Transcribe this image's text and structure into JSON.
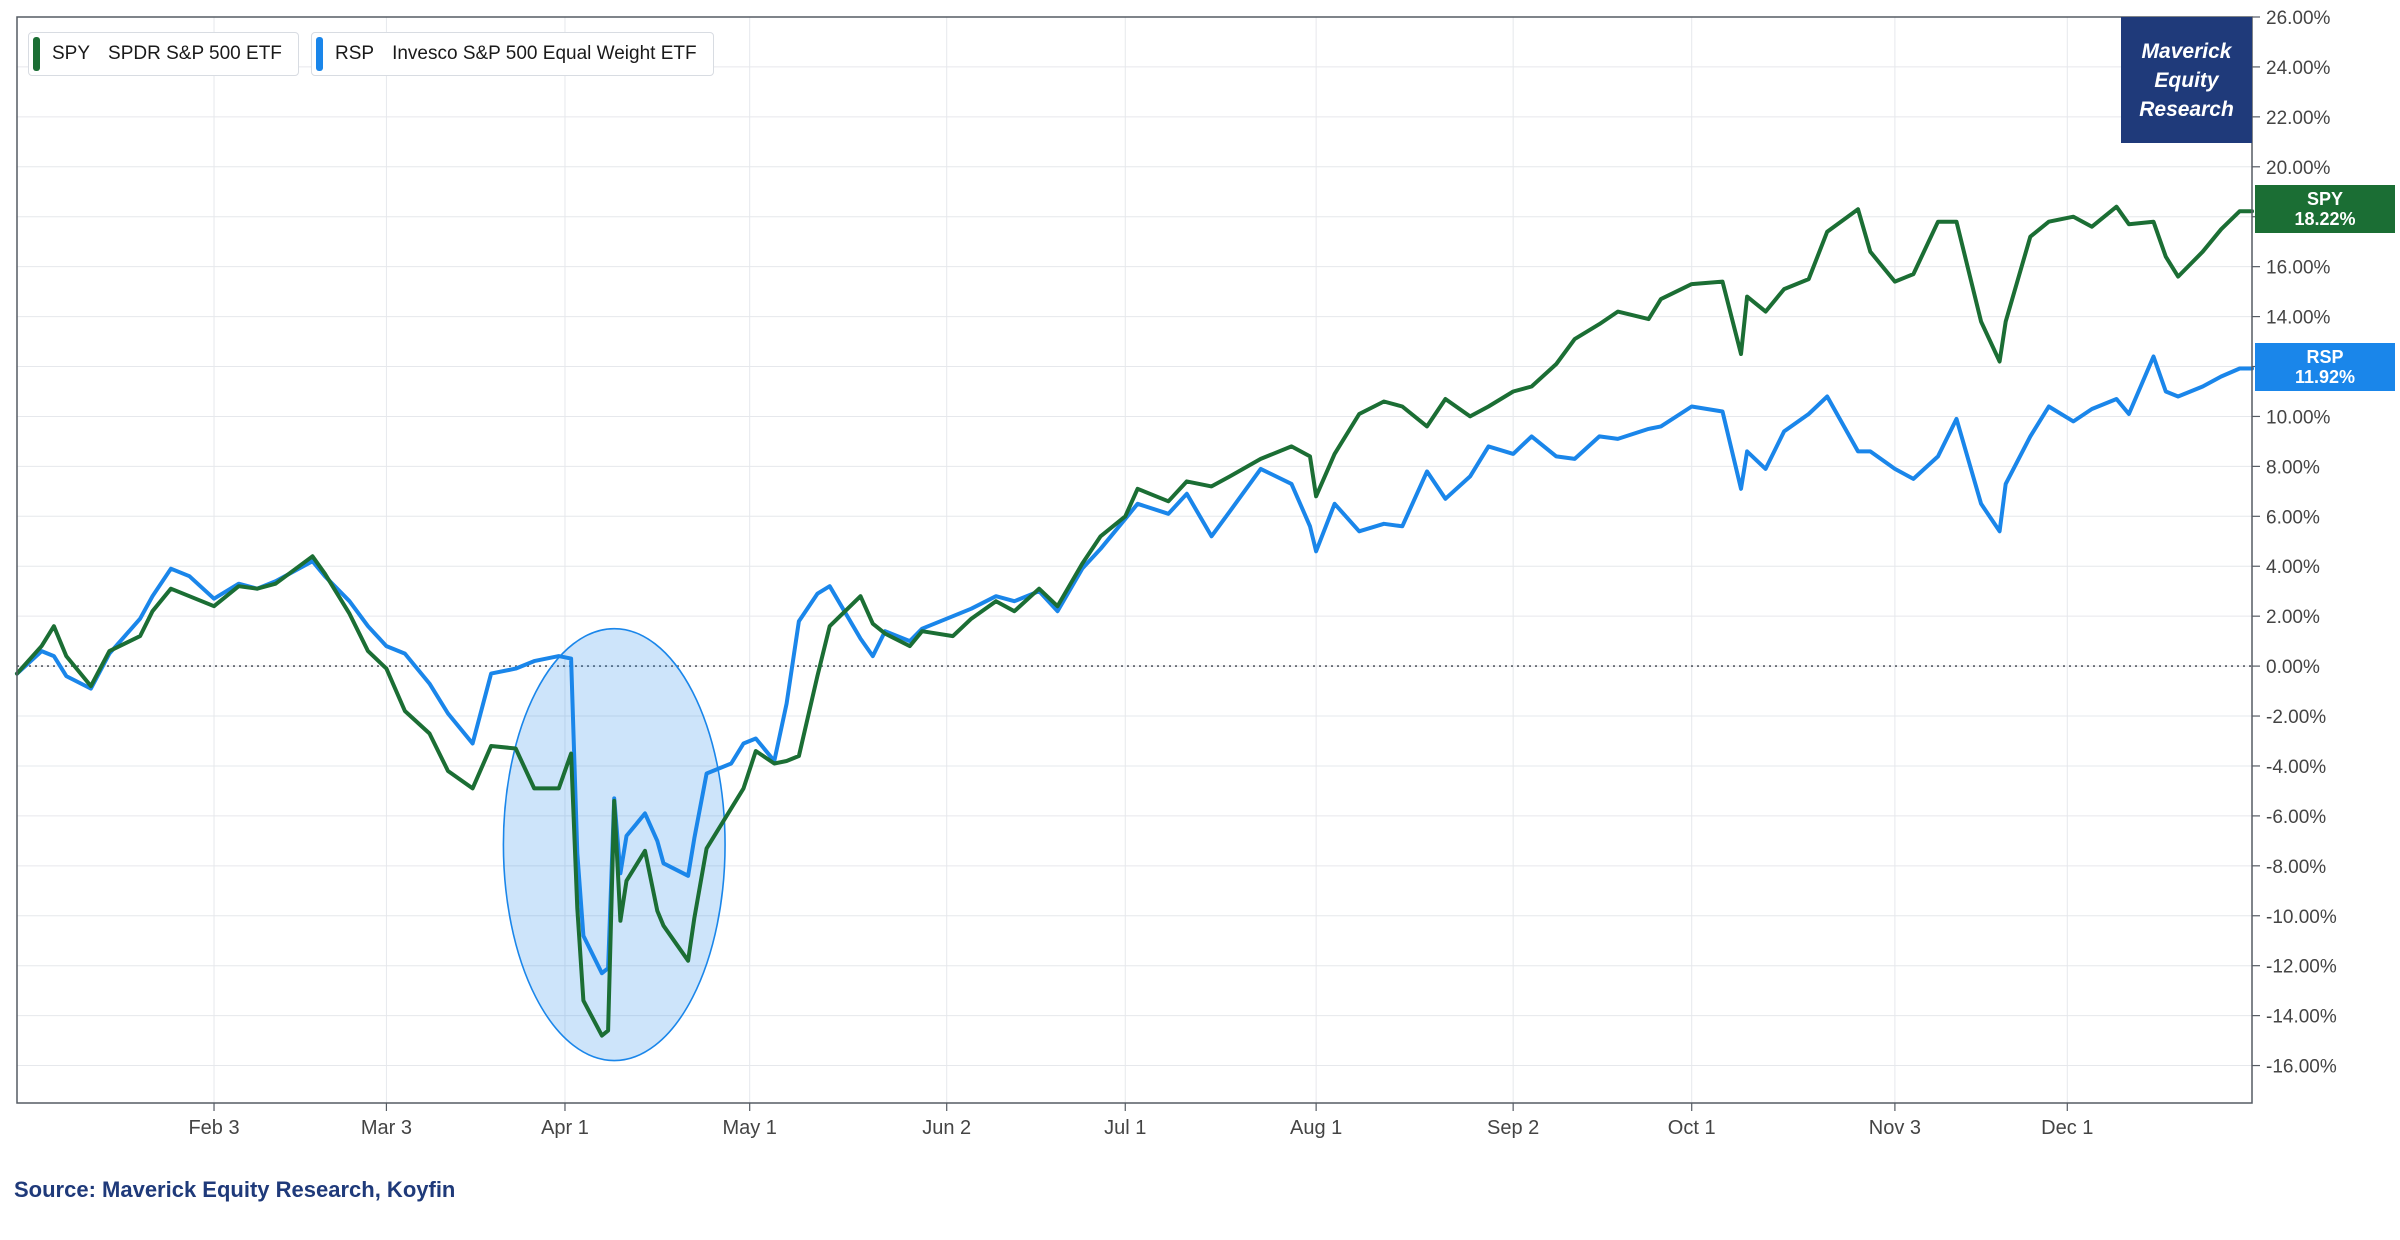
{
  "legend": [
    {
      "ticker": "SPY",
      "name": "SPDR S&P 500 ETF",
      "color": "#1b6e34"
    },
    {
      "ticker": "RSP",
      "name": "Invesco S&P 500 Equal Weight ETF",
      "color": "#1a86ea"
    }
  ],
  "brand": {
    "lines": [
      "Maverick",
      "Equity",
      "Research"
    ],
    "color": "#1f3a7a"
  },
  "source": "Source: Maverick Equity Research, Koyfin",
  "end_tags": {
    "spy": {
      "ticker": "SPY",
      "value": "18.22%",
      "color": "#1b6e34"
    },
    "rsp": {
      "ticker": "RSP",
      "value": "11.92%",
      "color": "#1a86ea"
    }
  },
  "chart_data": {
    "type": "line",
    "ylim": [
      -17.5,
      26
    ],
    "yticks": [
      "26.00%",
      "24.00%",
      "22.00%",
      "20.00%",
      "18.00%",
      "16.00%",
      "14.00%",
      "12.00%",
      "10.00%",
      "8.00%",
      "6.00%",
      "4.00%",
      "2.00%",
      "0.00%",
      "-2.00%",
      "-4.00%",
      "-6.00%",
      "-8.00%",
      "-10.00%",
      "-12.00%",
      "-14.00%",
      "-16.00%"
    ],
    "ytick_values": [
      26,
      24,
      22,
      20,
      18,
      16,
      14,
      12,
      10,
      8,
      6,
      4,
      2,
      0,
      -2,
      -4,
      -6,
      -8,
      -10,
      -12,
      -14,
      -16
    ],
    "xticks": [
      "Feb 3",
      "Mar 3",
      "Apr 1",
      "May 1",
      "Jun 2",
      "Jul 1",
      "Aug 1",
      "Sep 2",
      "Oct 1",
      "Nov 3",
      "Dec 1"
    ],
    "xtick_dates": [
      "2025-02-03",
      "2025-03-03",
      "2025-04-01",
      "2025-05-01",
      "2025-06-02",
      "2025-07-01",
      "2025-08-01",
      "2025-09-02",
      "2025-10-01",
      "2025-11-03",
      "2025-12-01"
    ],
    "xlim": [
      "2025-01-02",
      "2025-12-31"
    ],
    "zero_line": "dotted",
    "grid": true,
    "legend_position": "top-left",
    "highlight": {
      "shape": "ellipse",
      "x_range": [
        "2025-03-22",
        "2025-04-27"
      ],
      "y_range": [
        -15.8,
        1.5
      ],
      "color": "#1a86ea"
    },
    "series": [
      {
        "name": "SPY",
        "color": "#1b6e34",
        "x": [
          "2025-01-02",
          "2025-01-06",
          "2025-01-08",
          "2025-01-10",
          "2025-01-14",
          "2025-01-17",
          "2025-01-22",
          "2025-01-24",
          "2025-01-27",
          "2025-01-30",
          "2025-02-03",
          "2025-02-07",
          "2025-02-10",
          "2025-02-13",
          "2025-02-19",
          "2025-02-21",
          "2025-02-25",
          "2025-02-28",
          "2025-03-03",
          "2025-03-06",
          "2025-03-10",
          "2025-03-13",
          "2025-03-17",
          "2025-03-20",
          "2025-03-24",
          "2025-03-27",
          "2025-03-31",
          "2025-04-02",
          "2025-04-03",
          "2025-04-04",
          "2025-04-07",
          "2025-04-08",
          "2025-04-09",
          "2025-04-10",
          "2025-04-11",
          "2025-04-14",
          "2025-04-16",
          "2025-04-17",
          "2025-04-21",
          "2025-04-22",
          "2025-04-24",
          "2025-04-28",
          "2025-04-30",
          "2025-05-02",
          "2025-05-05",
          "2025-05-07",
          "2025-05-09",
          "2025-05-12",
          "2025-05-14",
          "2025-05-19",
          "2025-05-21",
          "2025-05-23",
          "2025-05-27",
          "2025-05-29",
          "2025-06-03",
          "2025-06-06",
          "2025-06-10",
          "2025-06-13",
          "2025-06-17",
          "2025-06-20",
          "2025-06-24",
          "2025-06-27",
          "2025-07-01",
          "2025-07-03",
          "2025-07-08",
          "2025-07-11",
          "2025-07-15",
          "2025-07-18",
          "2025-07-23",
          "2025-07-28",
          "2025-07-31",
          "2025-08-01",
          "2025-08-04",
          "2025-08-08",
          "2025-08-12",
          "2025-08-15",
          "2025-08-19",
          "2025-08-22",
          "2025-08-26",
          "2025-08-29",
          "2025-09-02",
          "2025-09-05",
          "2025-09-09",
          "2025-09-12",
          "2025-09-16",
          "2025-09-19",
          "2025-09-24",
          "2025-09-26",
          "2025-10-01",
          "2025-10-06",
          "2025-10-09",
          "2025-10-10",
          "2025-10-13",
          "2025-10-16",
          "2025-10-20",
          "2025-10-23",
          "2025-10-28",
          "2025-10-30",
          "2025-11-03",
          "2025-11-06",
          "2025-11-10",
          "2025-11-13",
          "2025-11-17",
          "2025-11-20",
          "2025-11-21",
          "2025-11-25",
          "2025-11-28",
          "2025-12-02",
          "2025-12-05",
          "2025-12-09",
          "2025-12-11",
          "2025-12-15",
          "2025-12-17",
          "2025-12-19",
          "2025-12-23",
          "2025-12-26",
          "2025-12-29",
          "2025-12-31"
        ],
        "values": [
          -0.3,
          0.8,
          1.6,
          0.4,
          -0.8,
          0.6,
          1.2,
          2.2,
          3.1,
          2.8,
          2.4,
          3.2,
          3.1,
          3.3,
          4.4,
          3.7,
          2.1,
          0.6,
          -0.1,
          -1.8,
          -2.7,
          -4.2,
          -4.9,
          -3.2,
          -3.3,
          -4.9,
          -4.9,
          -3.5,
          -9.7,
          -13.4,
          -14.8,
          -14.6,
          -5.4,
          -10.2,
          -8.6,
          -7.4,
          -9.8,
          -10.4,
          -11.8,
          -10.1,
          -7.3,
          -5.7,
          -4.9,
          -3.4,
          -3.9,
          -3.8,
          -3.6,
          -0.4,
          1.6,
          2.8,
          1.7,
          1.3,
          0.8,
          1.4,
          1.2,
          1.9,
          2.6,
          2.2,
          3.1,
          2.4,
          4.1,
          5.2,
          6.0,
          7.1,
          6.6,
          7.4,
          7.2,
          7.6,
          8.3,
          8.8,
          8.4,
          6.8,
          8.5,
          10.1,
          10.6,
          10.4,
          9.6,
          10.7,
          10.0,
          10.4,
          11.0,
          11.2,
          12.1,
          13.1,
          13.7,
          14.2,
          13.9,
          14.7,
          15.3,
          15.4,
          12.5,
          14.8,
          14.2,
          15.1,
          15.5,
          17.4,
          18.3,
          16.6,
          15.4,
          15.7,
          17.8,
          17.8,
          13.8,
          12.2,
          13.8,
          17.2,
          17.8,
          18.0,
          17.6,
          18.4,
          17.7,
          17.8,
          16.4,
          15.6,
          16.6,
          17.5,
          18.22,
          18.22
        ]
      },
      {
        "name": "RSP",
        "color": "#1a86ea",
        "x": [
          "2025-01-02",
          "2025-01-06",
          "2025-01-08",
          "2025-01-10",
          "2025-01-14",
          "2025-01-17",
          "2025-01-22",
          "2025-01-24",
          "2025-01-27",
          "2025-01-30",
          "2025-02-03",
          "2025-02-07",
          "2025-02-10",
          "2025-02-13",
          "2025-02-19",
          "2025-02-21",
          "2025-02-25",
          "2025-02-28",
          "2025-03-03",
          "2025-03-06",
          "2025-03-10",
          "2025-03-13",
          "2025-03-17",
          "2025-03-20",
          "2025-03-24",
          "2025-03-27",
          "2025-03-31",
          "2025-04-02",
          "2025-04-03",
          "2025-04-04",
          "2025-04-07",
          "2025-04-08",
          "2025-04-09",
          "2025-04-10",
          "2025-04-11",
          "2025-04-14",
          "2025-04-16",
          "2025-04-17",
          "2025-04-21",
          "2025-04-22",
          "2025-04-24",
          "2025-04-28",
          "2025-04-30",
          "2025-05-02",
          "2025-05-05",
          "2025-05-07",
          "2025-05-09",
          "2025-05-12",
          "2025-05-14",
          "2025-05-19",
          "2025-05-21",
          "2025-05-23",
          "2025-05-27",
          "2025-05-29",
          "2025-06-03",
          "2025-06-06",
          "2025-06-10",
          "2025-06-13",
          "2025-06-17",
          "2025-06-20",
          "2025-06-24",
          "2025-06-27",
          "2025-07-01",
          "2025-07-03",
          "2025-07-08",
          "2025-07-11",
          "2025-07-15",
          "2025-07-18",
          "2025-07-23",
          "2025-07-28",
          "2025-07-31",
          "2025-08-01",
          "2025-08-04",
          "2025-08-08",
          "2025-08-12",
          "2025-08-15",
          "2025-08-19",
          "2025-08-22",
          "2025-08-26",
          "2025-08-29",
          "2025-09-02",
          "2025-09-05",
          "2025-09-09",
          "2025-09-12",
          "2025-09-16",
          "2025-09-19",
          "2025-09-24",
          "2025-09-26",
          "2025-10-01",
          "2025-10-06",
          "2025-10-09",
          "2025-10-10",
          "2025-10-13",
          "2025-10-16",
          "2025-10-20",
          "2025-10-23",
          "2025-10-28",
          "2025-10-30",
          "2025-11-03",
          "2025-11-06",
          "2025-11-10",
          "2025-11-13",
          "2025-11-17",
          "2025-11-20",
          "2025-11-21",
          "2025-11-25",
          "2025-11-28",
          "2025-12-02",
          "2025-12-05",
          "2025-12-09",
          "2025-12-11",
          "2025-12-15",
          "2025-12-17",
          "2025-12-19",
          "2025-12-23",
          "2025-12-26",
          "2025-12-29",
          "2025-12-31"
        ],
        "values": [
          -0.3,
          0.6,
          0.4,
          -0.4,
          -0.9,
          0.5,
          1.9,
          2.8,
          3.9,
          3.6,
          2.7,
          3.3,
          3.1,
          3.4,
          4.2,
          3.6,
          2.6,
          1.6,
          0.8,
          0.5,
          -0.7,
          -1.9,
          -3.1,
          -0.3,
          -0.1,
          0.2,
          0.4,
          0.3,
          -7.5,
          -10.8,
          -12.3,
          -12.1,
          -5.3,
          -8.3,
          -6.8,
          -5.9,
          -7.0,
          -7.9,
          -8.4,
          -6.9,
          -4.3,
          -3.9,
          -3.1,
          -2.9,
          -3.8,
          -1.5,
          1.8,
          2.9,
          3.2,
          1.1,
          0.4,
          1.4,
          1.0,
          1.5,
          2.0,
          2.3,
          2.8,
          2.6,
          3.0,
          2.2,
          3.9,
          4.7,
          5.9,
          6.5,
          6.1,
          6.9,
          5.2,
          6.2,
          7.9,
          7.3,
          5.6,
          4.6,
          6.5,
          5.4,
          5.7,
          5.6,
          7.8,
          6.7,
          7.6,
          8.8,
          8.5,
          9.2,
          8.4,
          8.3,
          9.2,
          9.1,
          9.5,
          9.6,
          10.4,
          10.2,
          7.1,
          8.6,
          7.9,
          9.4,
          10.1,
          10.8,
          8.6,
          8.6,
          7.9,
          7.5,
          8.4,
          9.9,
          6.5,
          5.4,
          7.3,
          9.2,
          10.4,
          9.8,
          10.3,
          10.7,
          10.1,
          12.4,
          11.0,
          10.8,
          11.2,
          11.6,
          11.92,
          11.92
        ]
      }
    ]
  }
}
